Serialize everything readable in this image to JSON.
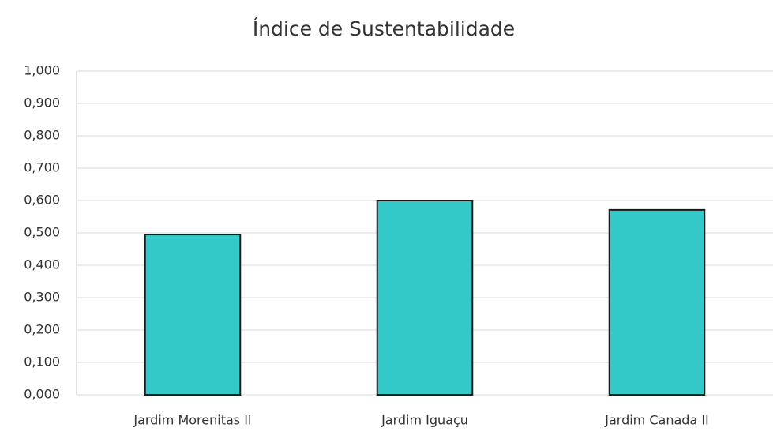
{
  "chart_data": {
    "type": "bar",
    "title": "Índice de Sustentabilidade",
    "categories": [
      "Jardim Morenitas II",
      "Jardim Iguaçu",
      "Jardim Canada II"
    ],
    "values": [
      0.495,
      0.6,
      0.571
    ],
    "color": "#33c9c9",
    "ylim": [
      0,
      1
    ],
    "yticks": [
      {
        "value": 0,
        "label": "0,000"
      },
      {
        "value": 0.1,
        "label": "0,100"
      },
      {
        "value": 0.2,
        "label": "0,200"
      },
      {
        "value": 0.3,
        "label": "0,300"
      },
      {
        "value": 0.4,
        "label": "0,400"
      },
      {
        "value": 0.5,
        "label": "0,500"
      },
      {
        "value": 0.6,
        "label": "0,600"
      },
      {
        "value": 0.7,
        "label": "0,700"
      },
      {
        "value": 0.8,
        "label": "0,800"
      },
      {
        "value": 0.9,
        "label": "0,900"
      },
      {
        "value": 1,
        "label": "1,000"
      }
    ],
    "grid": true
  }
}
